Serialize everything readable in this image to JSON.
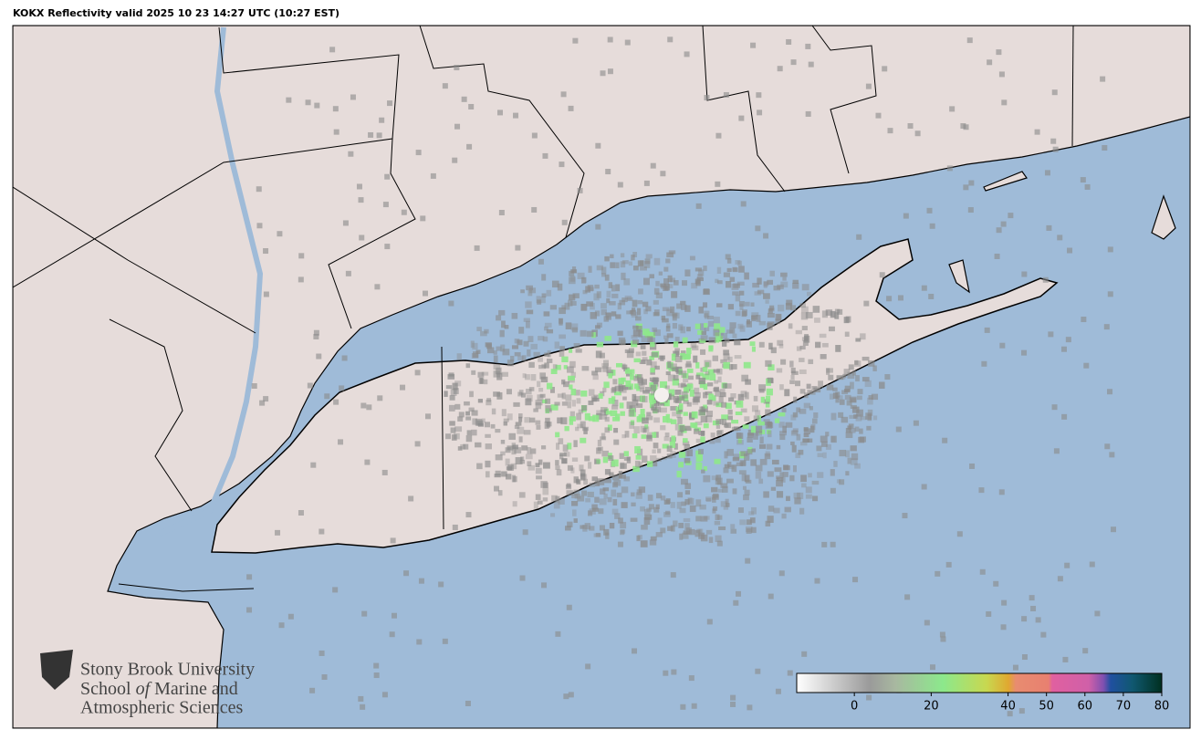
{
  "title": "KOKX Reflectivity valid 2025 10 23 14:27 UTC (10:27 EST)",
  "logo": {
    "line1": "Stony Brook University",
    "line2_start": "School",
    "line2_italic": "of",
    "line2_end": "Marine and",
    "line3": "Atmospheric Sciences"
  },
  "colorbar": {
    "lim": [
      -15,
      80
    ],
    "ticks": [
      0,
      20,
      40,
      50,
      60,
      70,
      80
    ]
  }
}
